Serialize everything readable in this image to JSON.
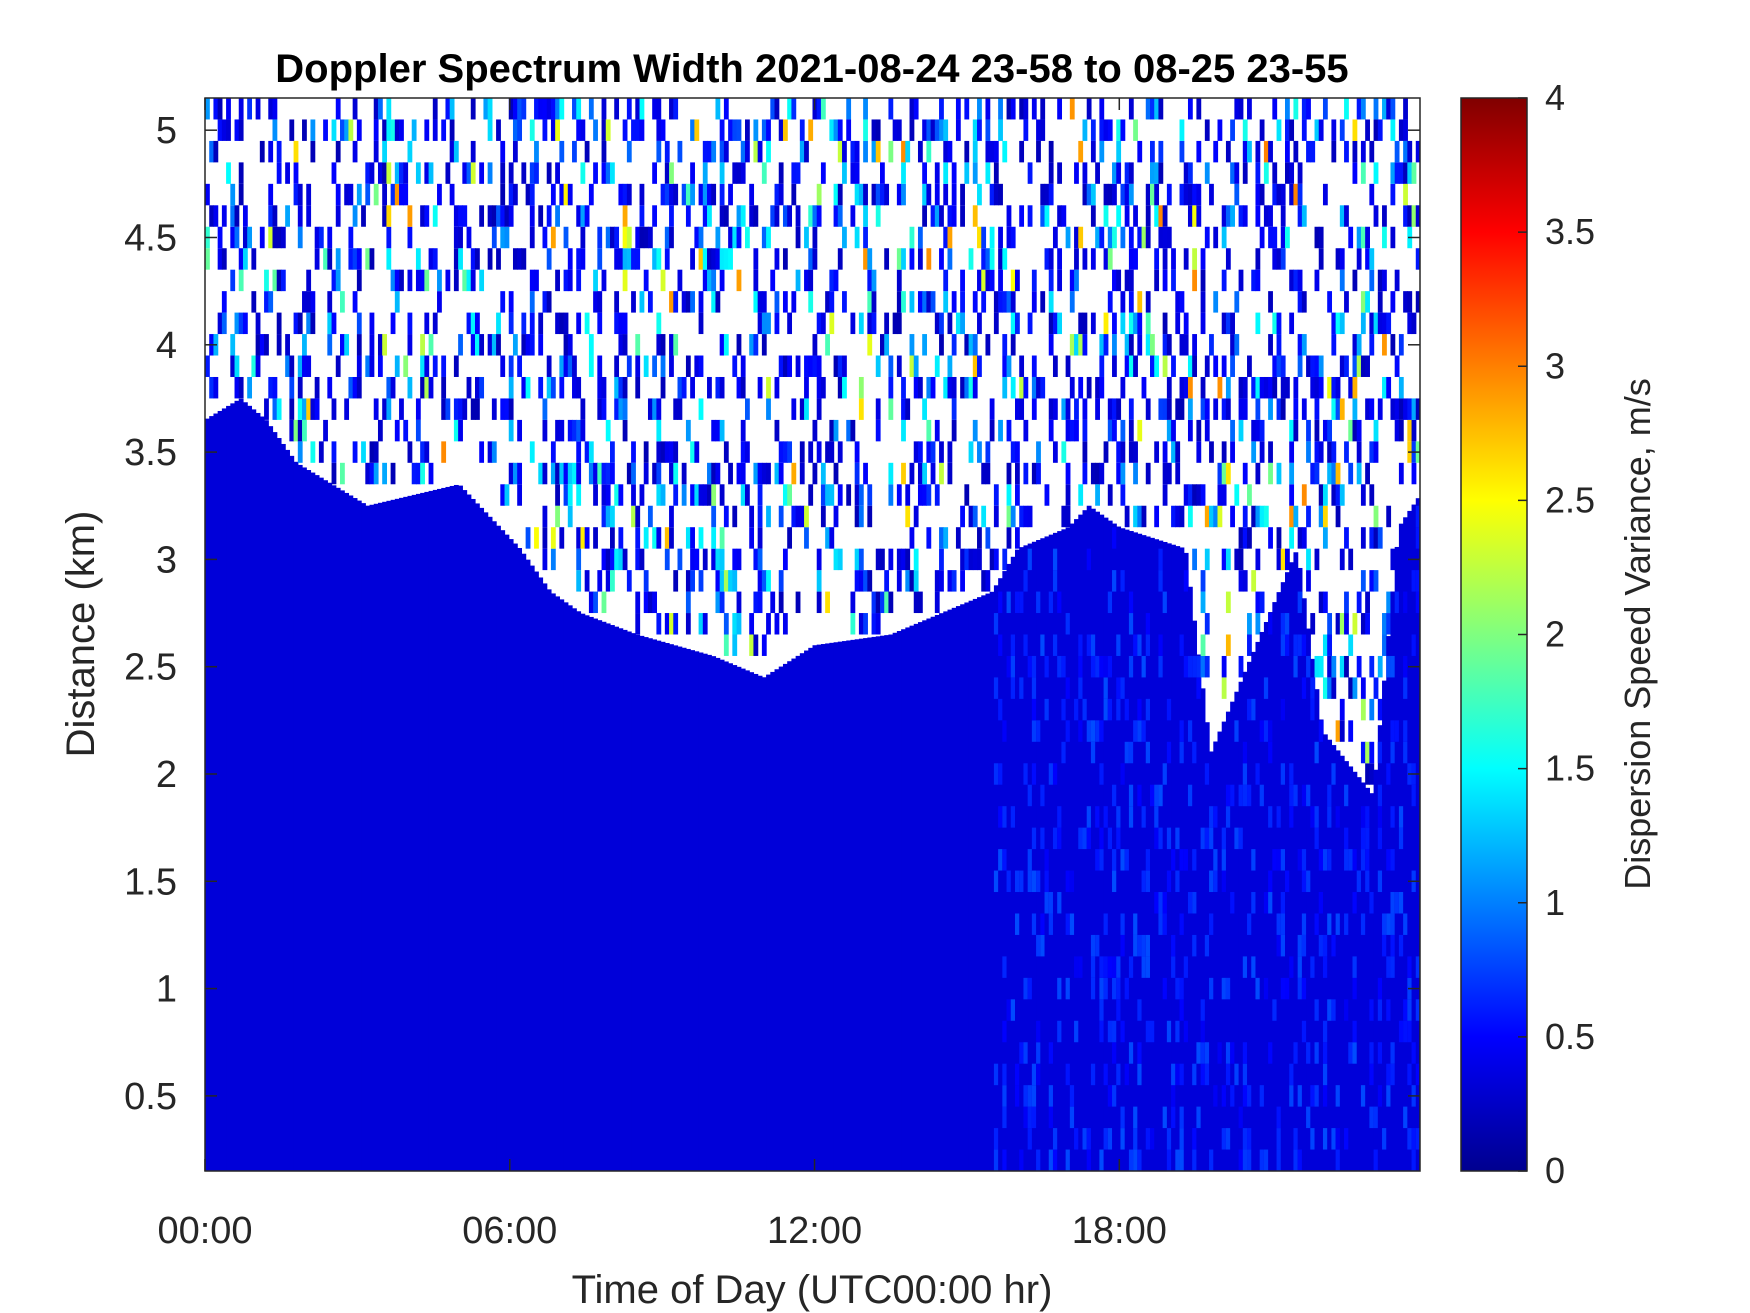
{
  "chart_data": {
    "type": "heatmap",
    "title": "Doppler Spectrum Width 2021-08-24 23-58 to 08-25 23-55",
    "xlabel": "Time of Day (UTC00:00 hr)",
    "ylabel": "Distance (km)",
    "colorbar_label": "Dispersion Speed Variance, m/s",
    "colormap": "jet",
    "xlim_hours": [
      0,
      23.92
    ],
    "ylim_km": [
      0.15,
      5.15
    ],
    "clim": [
      0,
      4
    ],
    "x_ticks": [
      {
        "hours": 0,
        "label": "00:00"
      },
      {
        "hours": 6,
        "label": "06:00"
      },
      {
        "hours": 12,
        "label": "12:00"
      },
      {
        "hours": 18,
        "label": "18:00"
      }
    ],
    "y_ticks": [
      {
        "km": 0.5,
        "label": "0.5"
      },
      {
        "km": 1,
        "label": "1"
      },
      {
        "km": 1.5,
        "label": "1.5"
      },
      {
        "km": 2,
        "label": "2"
      },
      {
        "km": 2.5,
        "label": "2.5"
      },
      {
        "km": 3,
        "label": "3"
      },
      {
        "km": 3.5,
        "label": "3.5"
      },
      {
        "km": 4,
        "label": "4"
      },
      {
        "km": 4.5,
        "label": "4.5"
      },
      {
        "km": 5,
        "label": "5"
      }
    ],
    "colorbar_ticks": [
      {
        "value": 0,
        "label": "0"
      },
      {
        "value": 0.5,
        "label": "0.5"
      },
      {
        "value": 1,
        "label": "1"
      },
      {
        "value": 1.5,
        "label": "1.5"
      },
      {
        "value": 2,
        "label": "2"
      },
      {
        "value": 2.5,
        "label": "2.5"
      },
      {
        "value": 3,
        "label": "3"
      },
      {
        "value": 3.5,
        "label": "3.5"
      },
      {
        "value": 4,
        "label": "4"
      }
    ],
    "signal_top_km": {
      "hours": [
        0,
        0.7,
        1.2,
        1.8,
        3.2,
        5.0,
        5.8,
        6.2,
        6.8,
        7.4,
        8.5,
        10.0,
        11.0,
        12.0,
        13.5,
        14.5,
        15.5,
        16.0,
        17.0,
        17.4,
        18.0,
        19.3,
        19.8,
        21.5,
        22.0,
        23.0,
        23.5,
        23.92
      ],
      "km": [
        3.65,
        3.75,
        3.65,
        3.45,
        3.25,
        3.35,
        3.15,
        3.05,
        2.85,
        2.75,
        2.65,
        2.55,
        2.45,
        2.6,
        2.65,
        2.75,
        2.85,
        3.05,
        3.15,
        3.25,
        3.15,
        3.05,
        2.1,
        3.05,
        2.2,
        1.9,
        3.15,
        3.3
      ]
    },
    "background_value_mps": 0.35,
    "grid": false
  }
}
